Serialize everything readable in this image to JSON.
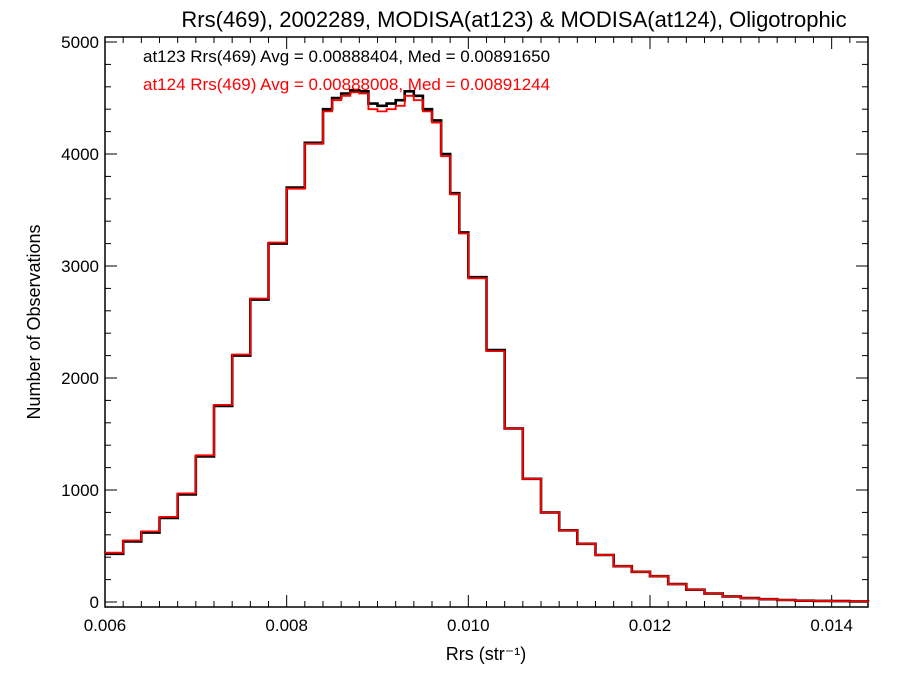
{
  "chart_data": {
    "type": "line",
    "title": "Rrs(469), 2002289, MODISA(at123) & MODISA(at124), Oligotrophic",
    "xlabel": "Rrs (str⁻¹)",
    "ylabel": "Number of Observations",
    "xlim": [
      0.006,
      0.0144
    ],
    "ylim": [
      0,
      5000
    ],
    "x_ticks": [
      "0.006",
      "0.008",
      "0.010",
      "0.012",
      "0.014"
    ],
    "x_tick_values": [
      0.006,
      0.008,
      0.01,
      0.012,
      0.014
    ],
    "y_ticks": [
      "0",
      "1000",
      "2000",
      "3000",
      "4000",
      "5000"
    ],
    "y_tick_values": [
      0,
      1000,
      2000,
      3000,
      4000,
      5000
    ],
    "grid": false,
    "step": true,
    "annotations": [
      {
        "text": "at123 Rrs(469) Avg = 0.00888404, Med = 0.00891650",
        "color": "#000000"
      },
      {
        "text": "at124 Rrs(469) Avg = 0.00888008, Med = 0.00891244",
        "color": "#ff0000"
      }
    ],
    "series": [
      {
        "color": "#000000",
        "x": [
          0.006,
          0.0062,
          0.0064,
          0.0066,
          0.0068,
          0.007,
          0.0072,
          0.0074,
          0.0076,
          0.0078,
          0.008,
          0.0082,
          0.0084,
          0.0085,
          0.0086,
          0.0087,
          0.0088,
          0.0089,
          0.009,
          0.0091,
          0.0092,
          0.0093,
          0.0094,
          0.0095,
          0.0096,
          0.0097,
          0.0098,
          0.0099,
          0.01,
          0.0102,
          0.0104,
          0.0106,
          0.0108,
          0.011,
          0.0112,
          0.0114,
          0.0116,
          0.0118,
          0.012,
          0.0122,
          0.0124,
          0.0126,
          0.0128,
          0.013,
          0.0132,
          0.0134,
          0.0136,
          0.0138,
          0.014,
          0.0142,
          0.0144
        ],
        "values": [
          430,
          540,
          620,
          750,
          960,
          1300,
          1750,
          2200,
          2700,
          3200,
          3700,
          4100,
          4400,
          4500,
          4540,
          4570,
          4560,
          4450,
          4430,
          4450,
          4480,
          4560,
          4520,
          4400,
          4300,
          4000,
          3650,
          3300,
          2900,
          2250,
          1550,
          1100,
          800,
          640,
          520,
          420,
          320,
          270,
          230,
          160,
          110,
          75,
          50,
          35,
          25,
          18,
          12,
          10,
          8,
          5,
          3
        ]
      },
      {
        "color": "#ff0000",
        "x": [
          0.006,
          0.0062,
          0.0064,
          0.0066,
          0.0068,
          0.007,
          0.0072,
          0.0074,
          0.0076,
          0.0078,
          0.008,
          0.0082,
          0.0084,
          0.0085,
          0.0086,
          0.0087,
          0.0088,
          0.0089,
          0.009,
          0.0091,
          0.0092,
          0.0093,
          0.0094,
          0.0095,
          0.0096,
          0.0097,
          0.0098,
          0.0099,
          0.01,
          0.0102,
          0.0104,
          0.0106,
          0.0108,
          0.011,
          0.0112,
          0.0114,
          0.0116,
          0.0118,
          0.012,
          0.0122,
          0.0124,
          0.0126,
          0.0128,
          0.013,
          0.0132,
          0.0134,
          0.0136,
          0.0138,
          0.014,
          0.0142,
          0.0144
        ],
        "values": [
          440,
          550,
          630,
          760,
          970,
          1310,
          1760,
          2210,
          2710,
          3210,
          3690,
          4090,
          4380,
          4480,
          4520,
          4550,
          4540,
          4400,
          4380,
          4400,
          4430,
          4520,
          4480,
          4380,
          4280,
          3980,
          3640,
          3290,
          2890,
          2240,
          1550,
          1100,
          800,
          640,
          520,
          420,
          320,
          270,
          230,
          160,
          110,
          75,
          50,
          35,
          25,
          18,
          12,
          10,
          8,
          5,
          3
        ]
      }
    ]
  }
}
